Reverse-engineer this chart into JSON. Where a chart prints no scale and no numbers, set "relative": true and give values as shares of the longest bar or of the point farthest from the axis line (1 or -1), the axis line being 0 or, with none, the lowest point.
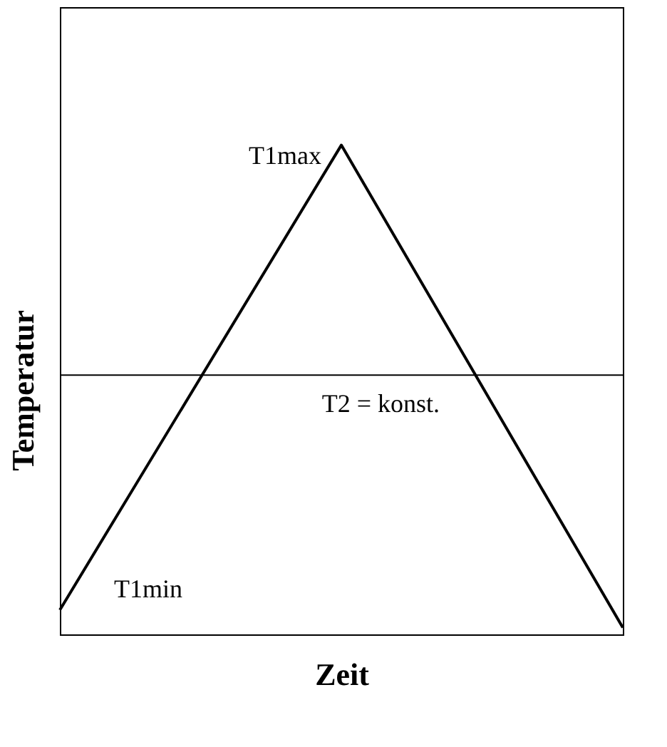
{
  "chart_data": {
    "type": "line",
    "relative": true,
    "xlabel": "Zeit",
    "ylabel": "Temperatur",
    "categories": [
      null,
      null,
      null
    ],
    "series": [
      {
        "color": "#000000",
        "values": [
          0.05,
          1,
          0.014
        ]
      }
    ],
    "ref_lines": [
      {
        "axis": "y",
        "value": 0.53,
        "label": "T2 = konst.",
        "color": "#000000"
      }
    ],
    "annotations": [
      "T1max",
      "T1min"
    ],
    "marker": "none",
    "line_style": "solid"
  }
}
